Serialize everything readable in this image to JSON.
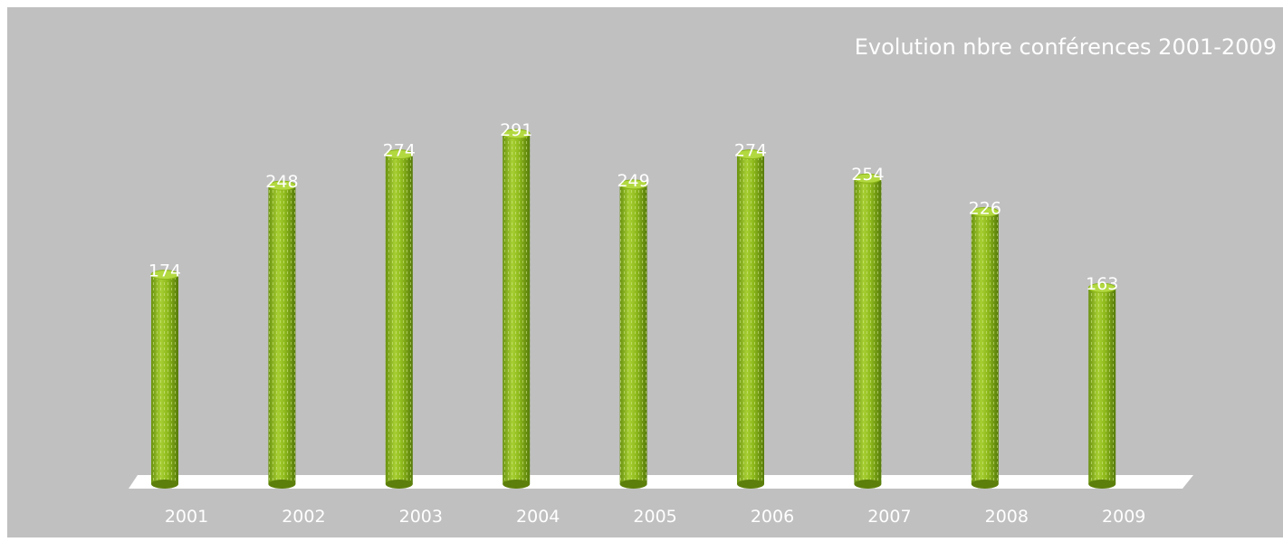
{
  "chart_data": {
    "type": "bar",
    "title": "Evolution nbre conférences  2001-2009",
    "categories": [
      "2001",
      "2002",
      "2003",
      "2004",
      "2005",
      "2006",
      "2007",
      "2008",
      "2009"
    ],
    "series": [
      {
        "values": [
          174,
          248,
          274,
          291,
          249,
          274,
          254,
          226,
          163
        ]
      }
    ],
    "ylim": [
      0,
      350
    ],
    "grid": false,
    "legend": "none",
    "style": "3d-cylinder"
  },
  "colors": {
    "background": "#c0c0c0",
    "plot_floor": "#ffffff",
    "bar_main": "#8bb517",
    "bar_light": "#b3d941",
    "bar_dark": "#5c7f0b",
    "bar_stripe": "#d6eb92",
    "title_text": "#ffffff",
    "label_text": "#ffffff"
  }
}
